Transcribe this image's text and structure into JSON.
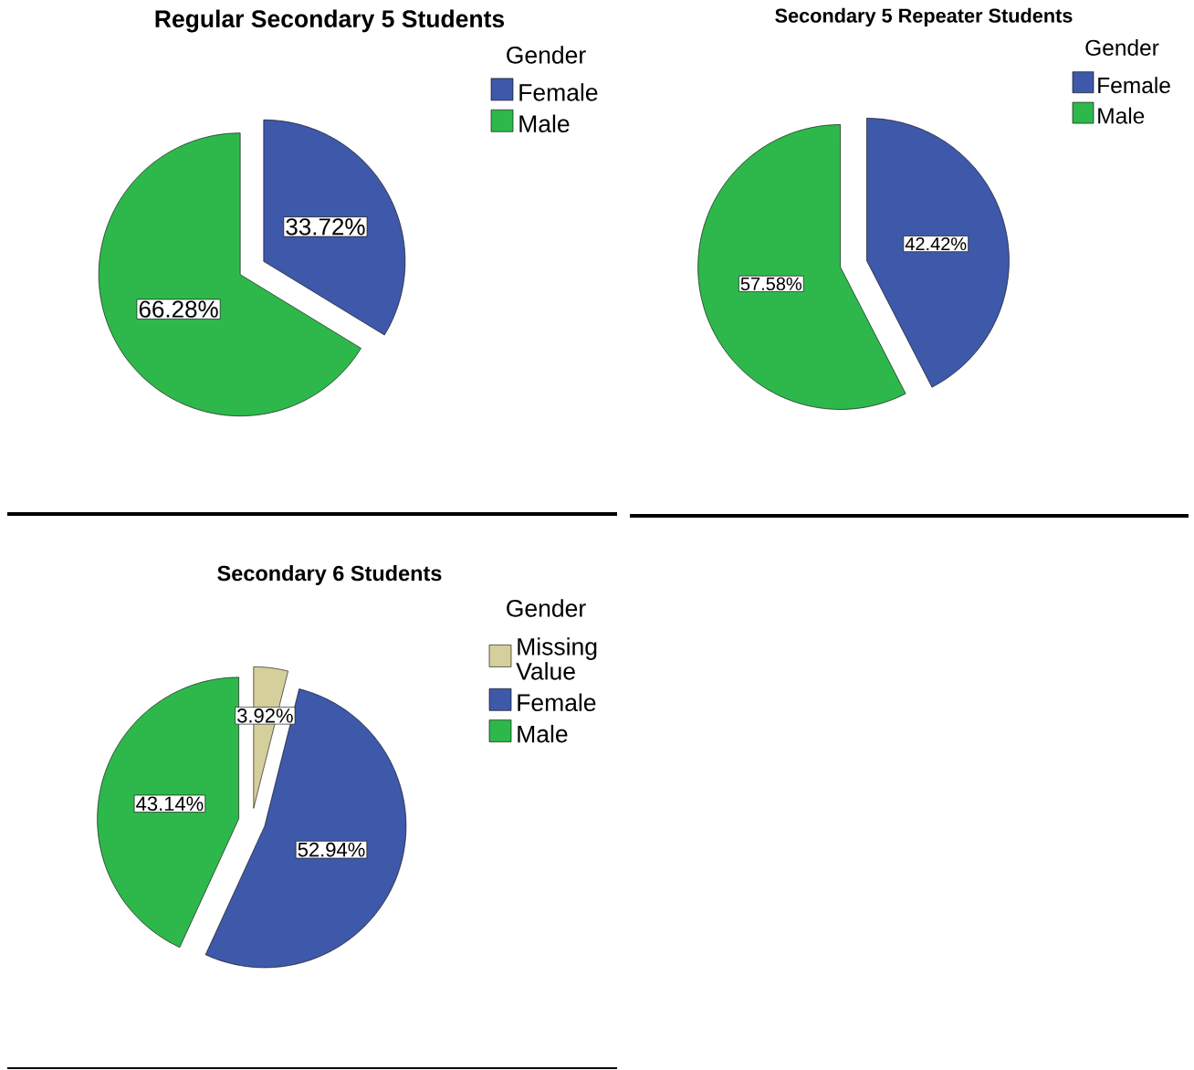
{
  "chart_data": [
    {
      "type": "pie",
      "title": "Regular Secondary 5 Students",
      "legend_title": "Gender",
      "categories": [
        "Female",
        "Male"
      ],
      "values": [
        33.72,
        66.28
      ],
      "colors": [
        "#3e58aa",
        "#2eb84b"
      ],
      "value_labels": [
        "33.72%",
        "66.28%"
      ],
      "legend": "top right"
    },
    {
      "type": "pie",
      "title": "Secondary 5 Repeater Students",
      "legend_title": "Gender",
      "categories": [
        "Female",
        "Male"
      ],
      "values": [
        42.42,
        57.58
      ],
      "colors": [
        "#3e58aa",
        "#2eb84b"
      ],
      "value_labels": [
        "42.42%",
        "57.58%"
      ],
      "legend": "top right"
    },
    {
      "type": "pie",
      "title": "Secondary 6 Students",
      "legend_title": "Gender",
      "categories": [
        "Missing Value",
        "Female",
        "Male"
      ],
      "values": [
        3.92,
        52.94,
        43.14
      ],
      "colors": [
        "#d5cf9c",
        "#3e58aa",
        "#2eb84b"
      ],
      "value_labels": [
        "3.92%",
        "52.94%",
        "43.14%"
      ],
      "legend": "top right"
    }
  ]
}
